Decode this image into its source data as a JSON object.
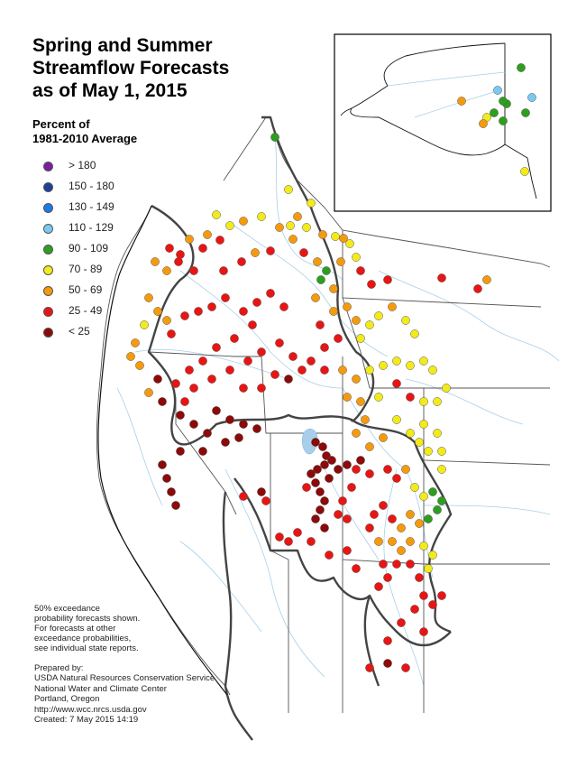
{
  "title": {
    "line1": "Spring and Summer",
    "line2": "Streamflow Forecasts",
    "line3": "as of May 1, 2015"
  },
  "legend": {
    "title_line1": "Percent of",
    "title_line2": "1981-2010 Average",
    "items": [
      {
        "label": "> 180",
        "color": "#7a1fa2"
      },
      {
        "label": "150 - 180",
        "color": "#1f3f9e"
      },
      {
        "label": "130 - 149",
        "color": "#1f78e8"
      },
      {
        "label": "110 - 129",
        "color": "#79c9f0"
      },
      {
        "label": "90 - 109",
        "color": "#2e9e1f"
      },
      {
        "label": "70 - 89",
        "color": "#f2ea1a"
      },
      {
        "label": "50 - 69",
        "color": "#f59a0d"
      },
      {
        "label": "25 - 49",
        "color": "#e81515"
      },
      {
        "label": "< 25",
        "color": "#8c0a0a"
      }
    ]
  },
  "note": {
    "line1": "50% exceedance",
    "line2": "probability forecasts shown.",
    "line3": "For forecasts at other",
    "line4": "exceedance probabilities,",
    "line5": "see individual state reports."
  },
  "credits": {
    "line1": "Prepared by:",
    "line2": "USDA Natural Resources Conservation Service",
    "line3": "National Water and Climate Center",
    "line4": "Portland, Oregon",
    "line5": "http://www.wcc.nrcs.usda.gov",
    "line6": "Created:   7 May 2015   14:19"
  },
  "colors": {
    "state_border": "#333333",
    "basin_border": "#444444",
    "rivers": "#9ec8e8",
    "lake": "#9ec8e8",
    "inset_frame": "#000000"
  }
}
